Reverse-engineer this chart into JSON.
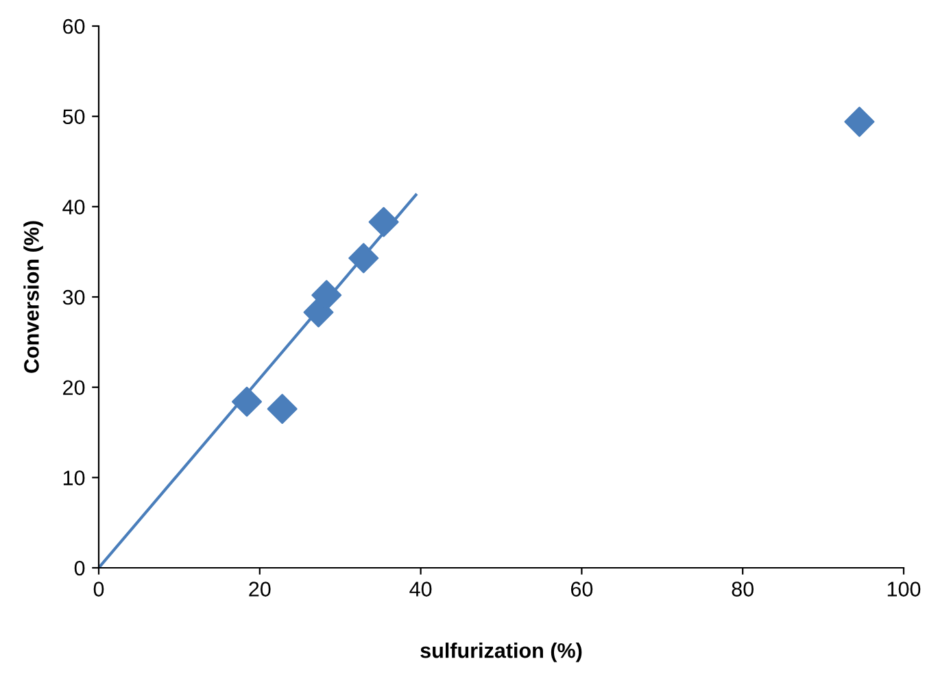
{
  "chart_data": {
    "type": "scatter",
    "xlabel": "sulfurization (%)",
    "ylabel": "Conversion (%)",
    "xlim": [
      0,
      100
    ],
    "ylim": [
      0,
      60
    ],
    "xticks": [
      0,
      20,
      40,
      60,
      80,
      100
    ],
    "yticks": [
      0,
      10,
      20,
      30,
      40,
      50,
      60
    ],
    "grid": false,
    "legend": false,
    "series": [
      {
        "color": "#4a7ebb",
        "marker": "diamond",
        "x": [
          18.4,
          22.8,
          27.3,
          28.3,
          32.9,
          35.4,
          94.5
        ],
        "values": [
          18.4,
          17.6,
          28.3,
          30.2,
          34.3,
          38.3,
          49.4
        ]
      },
      {
        "type": "line",
        "color": "#4a7ebb",
        "marker": "none",
        "line_style": "solid",
        "x": [
          0,
          39.4
        ],
        "values": [
          0,
          41.3
        ]
      }
    ]
  }
}
